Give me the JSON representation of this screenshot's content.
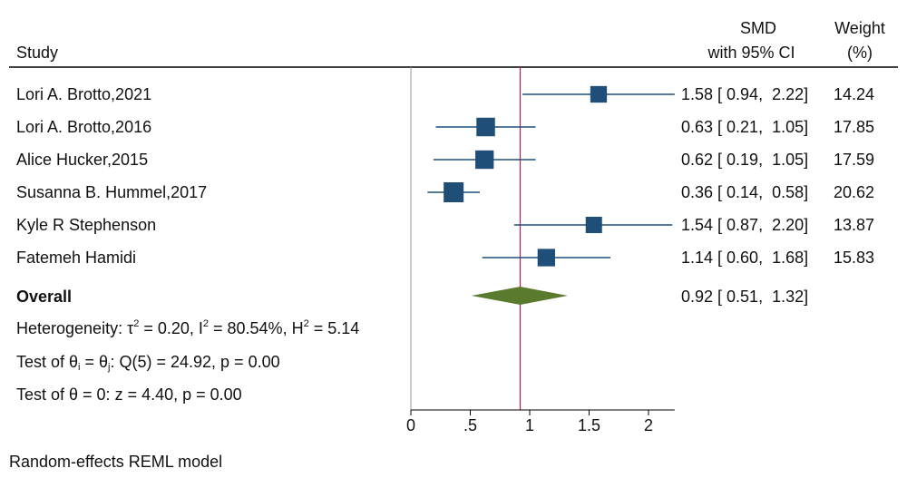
{
  "header": {
    "study_label": "Study",
    "smd_label_1": "SMD",
    "smd_label_2": "with 95% CI",
    "weight_label_1": "Weight",
    "weight_label_2": "(%)"
  },
  "colors": {
    "study_marker": "#1f4e79",
    "overall_diamond": "#5a7a2e",
    "overall_line": "#c2185b",
    "null_line": "#999999",
    "axis": "#000000"
  },
  "chart_data": {
    "type": "forest",
    "x_axis": {
      "ticks": [
        0,
        0.5,
        1,
        1.5,
        2
      ],
      "tick_labels": [
        "0",
        ".5",
        "1",
        "1.5",
        "2"
      ],
      "range": [
        0,
        2.22
      ]
    },
    "studies": [
      {
        "name": "Lori A. Brotto,2021",
        "smd": 1.58,
        "lo": 0.94,
        "hi": 2.22,
        "ci_text": "1.58 [ 0.94,  2.22]",
        "weight": "14.24"
      },
      {
        "name": "Lori A. Brotto,2016",
        "smd": 0.63,
        "lo": 0.21,
        "hi": 1.05,
        "ci_text": "0.63 [ 0.21,  1.05]",
        "weight": "17.85"
      },
      {
        "name": "Alice Hucker,2015",
        "smd": 0.62,
        "lo": 0.19,
        "hi": 1.05,
        "ci_text": "0.62 [ 0.19,  1.05]",
        "weight": "17.59"
      },
      {
        "name": "Susanna B. Hummel,2017",
        "smd": 0.36,
        "lo": 0.14,
        "hi": 0.58,
        "ci_text": "0.36 [ 0.14,  0.58]",
        "weight": "20.62"
      },
      {
        "name": "Kyle R Stephenson",
        "smd": 1.54,
        "lo": 0.87,
        "hi": 2.2,
        "ci_text": "1.54 [ 0.87,  2.20]",
        "weight": "13.87"
      },
      {
        "name": "Fatemeh Hamidi",
        "smd": 1.14,
        "lo": 0.6,
        "hi": 1.68,
        "ci_text": "1.14 [ 0.60,  1.68]",
        "weight": "15.83"
      }
    ],
    "overall": {
      "label": "Overall",
      "smd": 0.92,
      "lo": 0.51,
      "hi": 1.32,
      "ci_text": "0.92 [ 0.51,  1.32]"
    }
  },
  "stats": {
    "heterogeneity_prefix": "Heterogeneity: τ",
    "heterogeneity_tau_sup": "2",
    "heterogeneity_mid1": " = 0.20, I",
    "heterogeneity_i_sup": "2",
    "heterogeneity_mid2": " = 80.54%, H",
    "heterogeneity_h_sup": "2",
    "heterogeneity_end": " = 5.14",
    "test1_prefix": "Test of θ",
    "test1_sub_i": "i",
    "test1_mid": " = θ",
    "test1_sub_j": "j",
    "test1_end": ": Q(5) = 24.92, p = 0.00",
    "test2": "Test of θ = 0: z = 4.40, p = 0.00"
  },
  "footer": {
    "model_note": "Random-effects REML model"
  }
}
